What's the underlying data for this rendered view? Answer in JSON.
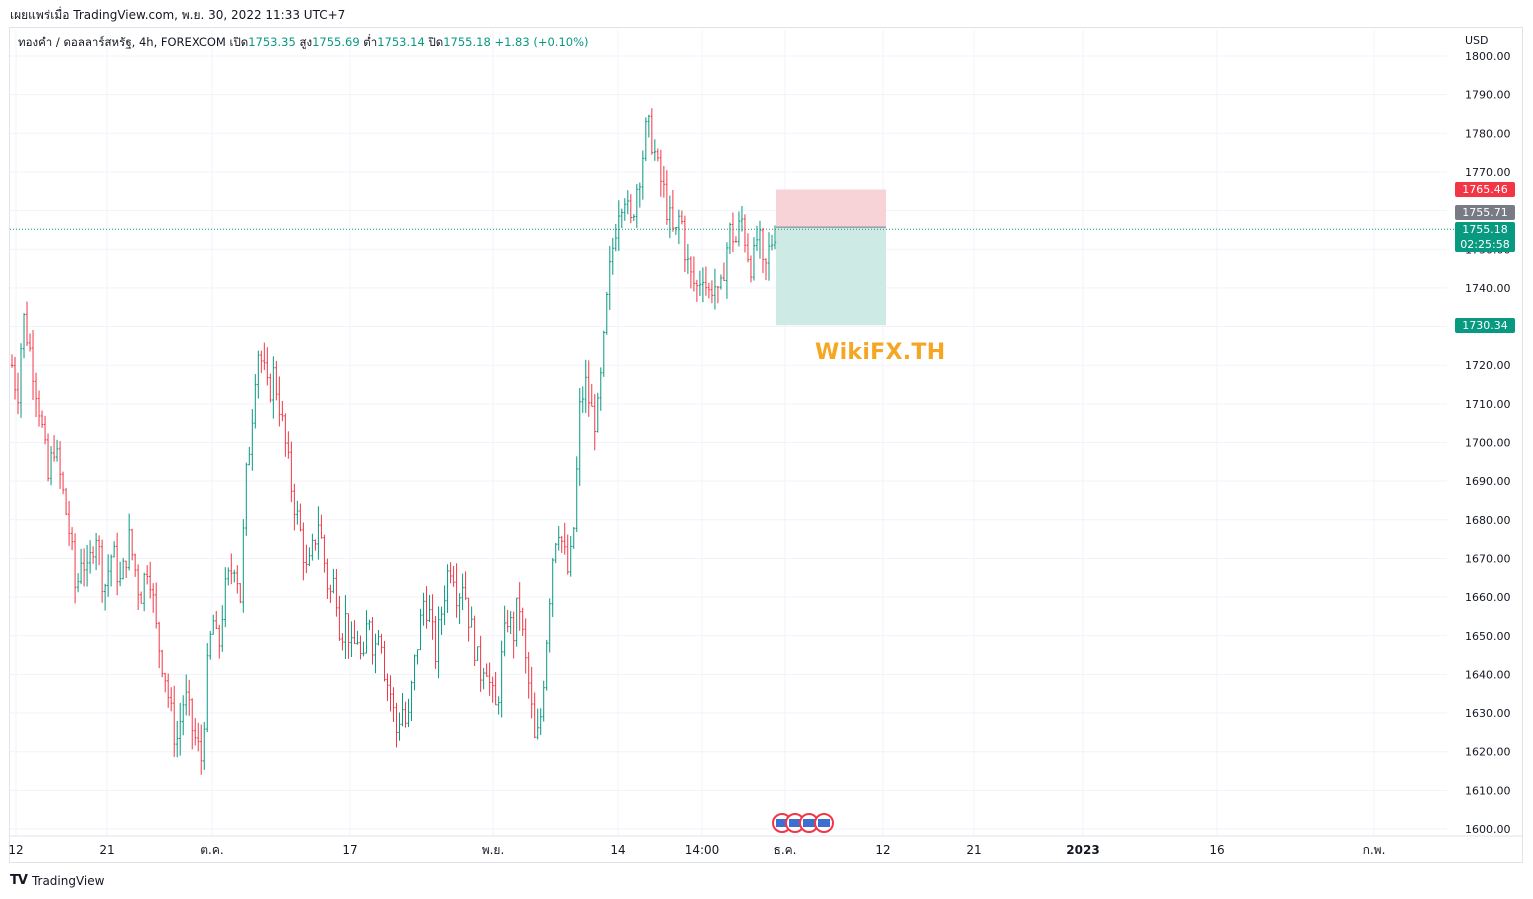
{
  "header": {
    "published": "เผยแพร่เมื่อ TradingView.com, พ.ย. 30, 2022 11:33 UTC+7"
  },
  "legend": {
    "symbol": "ทองคำ / ดอลลาร์สหรัฐ, 4h, FOREXCOM",
    "open_label": "เปิด",
    "open": "1753.35",
    "high_label": "สูง",
    "high": "1755.69",
    "low_label": "ต่ำ",
    "low": "1753.14",
    "close_label": "ปิด",
    "close": "1755.18",
    "change": "+1.83 (+0.10%)"
  },
  "axis": {
    "currency": "USD"
  },
  "watermark": "WikiFX.TH",
  "price_tags": {
    "stop": "1765.46",
    "entry": "1755.71",
    "last": "1755.18",
    "countdown": "02:25:58",
    "target": "1730.34"
  },
  "colors": {
    "up": "#089981",
    "down": "#f23645",
    "stop_zone": "#f7d3d7",
    "target_zone": "#cdebe4",
    "entry_tag": "#787b86",
    "watermark": "#f5a623"
  },
  "footer": {
    "brand": "TradingView",
    "logo": "TV"
  },
  "chart_data": {
    "type": "candlestick",
    "title": "ทองคำ / ดอลลาร์สหรัฐ, 4h, FOREXCOM",
    "ylim": [
      1598,
      1803
    ],
    "yticks": [
      1600,
      1610,
      1620,
      1630,
      1640,
      1650,
      1660,
      1670,
      1680,
      1690,
      1700,
      1710,
      1720,
      1730,
      1740,
      1750,
      1760,
      1770,
      1780,
      1790,
      1800
    ],
    "xticks": [
      "12",
      "21",
      "ต.ค.",
      "17",
      "พ.ย.",
      "14",
      "14:00",
      "ธ.ค.",
      "12",
      "21",
      "2023",
      "16",
      "ก.พ."
    ],
    "grid": true,
    "last_price": 1755.18,
    "position": {
      "type": "short",
      "entry": 1755.71,
      "stop": 1765.46,
      "target": 1730.34
    },
    "closes_path": [
      [
        0,
        1720
      ],
      [
        4,
        1712
      ],
      [
        8,
        1733
      ],
      [
        14,
        1722
      ],
      [
        20,
        1708
      ],
      [
        26,
        1690
      ],
      [
        30,
        1700
      ],
      [
        36,
        1688
      ],
      [
        42,
        1675
      ],
      [
        46,
        1660
      ],
      [
        50,
        1672
      ],
      [
        54,
        1665
      ],
      [
        60,
        1678
      ],
      [
        66,
        1662
      ],
      [
        72,
        1672
      ],
      [
        78,
        1663
      ],
      [
        84,
        1675
      ],
      [
        88,
        1668
      ],
      [
        92,
        1660
      ],
      [
        98,
        1670
      ],
      [
        104,
        1650
      ],
      [
        110,
        1640
      ],
      [
        114,
        1630
      ],
      [
        118,
        1622
      ],
      [
        124,
        1635
      ],
      [
        130,
        1625
      ],
      [
        136,
        1618
      ],
      [
        140,
        1640
      ],
      [
        144,
        1655
      ],
      [
        148,
        1645
      ],
      [
        152,
        1660
      ],
      [
        156,
        1665
      ],
      [
        160,
        1670
      ],
      [
        164,
        1660
      ],
      [
        168,
        1690
      ],
      [
        172,
        1705
      ],
      [
        176,
        1725
      ],
      [
        180,
        1720
      ],
      [
        184,
        1712
      ],
      [
        188,
        1718
      ],
      [
        192,
        1710
      ],
      [
        196,
        1700
      ],
      [
        200,
        1690
      ],
      [
        204,
        1682
      ],
      [
        208,
        1675
      ],
      [
        212,
        1665
      ],
      [
        216,
        1672
      ],
      [
        220,
        1680
      ],
      [
        224,
        1670
      ],
      [
        228,
        1660
      ],
      [
        232,
        1665
      ],
      [
        236,
        1650
      ],
      [
        240,
        1655
      ],
      [
        244,
        1645
      ],
      [
        248,
        1650
      ],
      [
        252,
        1640
      ],
      [
        256,
        1658
      ],
      [
        260,
        1645
      ],
      [
        264,
        1655
      ],
      [
        268,
        1640
      ],
      [
        272,
        1635
      ],
      [
        276,
        1625
      ],
      [
        280,
        1632
      ],
      [
        284,
        1625
      ],
      [
        288,
        1640
      ],
      [
        292,
        1650
      ],
      [
        296,
        1660
      ],
      [
        300,
        1655
      ],
      [
        304,
        1645
      ],
      [
        308,
        1655
      ],
      [
        312,
        1665
      ],
      [
        316,
        1670
      ],
      [
        320,
        1660
      ],
      [
        324,
        1665
      ],
      [
        328,
        1655
      ],
      [
        332,
        1648
      ],
      [
        336,
        1640
      ],
      [
        340,
        1645
      ],
      [
        344,
        1635
      ],
      [
        348,
        1630
      ],
      [
        352,
        1645
      ],
      [
        356,
        1655
      ],
      [
        360,
        1650
      ],
      [
        364,
        1660
      ],
      [
        368,
        1645
      ],
      [
        372,
        1635
      ],
      [
        376,
        1620
      ],
      [
        380,
        1630
      ],
      [
        384,
        1650
      ],
      [
        388,
        1670
      ],
      [
        392,
        1680
      ],
      [
        396,
        1672
      ],
      [
        400,
        1665
      ],
      [
        404,
        1680
      ],
      [
        408,
        1710
      ],
      [
        412,
        1715
      ],
      [
        416,
        1708
      ],
      [
        420,
        1705
      ],
      [
        424,
        1720
      ],
      [
        428,
        1740
      ],
      [
        432,
        1752
      ],
      [
        436,
        1762
      ],
      [
        440,
        1765
      ],
      [
        444,
        1755
      ],
      [
        448,
        1765
      ],
      [
        452,
        1772
      ],
      [
        456,
        1782
      ],
      [
        460,
        1778
      ],
      [
        464,
        1770
      ],
      [
        468,
        1765
      ],
      [
        472,
        1758
      ],
      [
        476,
        1752
      ],
      [
        480,
        1760
      ],
      [
        484,
        1748
      ],
      [
        488,
        1742
      ],
      [
        492,
        1740
      ],
      [
        496,
        1745
      ],
      [
        500,
        1738
      ],
      [
        504,
        1742
      ],
      [
        508,
        1735
      ],
      [
        512,
        1748
      ],
      [
        516,
        1755
      ],
      [
        520,
        1752
      ],
      [
        524,
        1758
      ],
      [
        528,
        1750
      ],
      [
        532,
        1745
      ],
      [
        536,
        1755
      ],
      [
        540,
        1742
      ],
      [
        544,
        1750
      ],
      [
        548,
        1755
      ]
    ]
  }
}
